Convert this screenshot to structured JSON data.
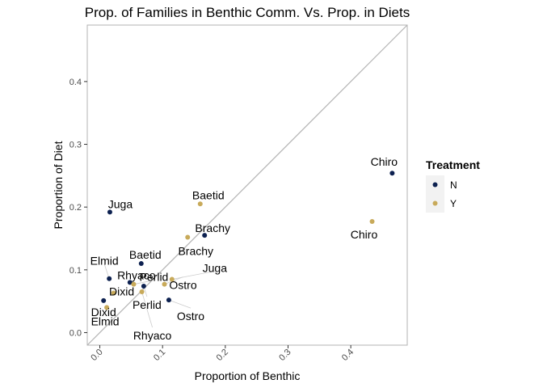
{
  "chart_data": {
    "type": "scatter",
    "title": "Prop. of Families in Benthic Comm. Vs. Prop. in Diets",
    "xlabel": "Proportion of Benthic",
    "ylabel": "Proportion of Diet",
    "xlim": [
      -0.02,
      0.49
    ],
    "ylim": [
      -0.02,
      0.49
    ],
    "x_ticks": [
      0.0,
      0.1,
      0.2,
      0.3,
      0.4
    ],
    "x_tick_labels": [
      "0.0",
      "0.1",
      "0.2",
      "0.3",
      "0.4"
    ],
    "y_ticks": [
      0.0,
      0.1,
      0.2,
      0.3,
      0.4
    ],
    "y_tick_labels": [
      "0.0",
      "0.1",
      "0.2",
      "0.3",
      "0.4"
    ],
    "reference_line": "y = x",
    "grid": false,
    "legend": {
      "title": "Treatment",
      "placement": "right",
      "entries": [
        {
          "label": "N",
          "color": "#0d2150"
        },
        {
          "label": "Y",
          "color": "#c8aa5a"
        }
      ]
    },
    "series": [
      {
        "name": "N",
        "color": "#0d2150",
        "points": [
          {
            "label": "Chiro",
            "x": 0.466,
            "y": 0.254
          },
          {
            "label": "Juga",
            "x": 0.016,
            "y": 0.192
          },
          {
            "label": "Brachy",
            "x": 0.167,
            "y": 0.155
          },
          {
            "label": "Baetid",
            "x": 0.066,
            "y": 0.11
          },
          {
            "label": "Elmid",
            "x": 0.015,
            "y": 0.086
          },
          {
            "label": "Rhyaco",
            "x": 0.048,
            "y": 0.08
          },
          {
            "label": "Perlid",
            "x": 0.07,
            "y": 0.074
          },
          {
            "label": "Ostro",
            "x": 0.11,
            "y": 0.052
          },
          {
            "label": "Dixid",
            "x": 0.006,
            "y": 0.051
          }
        ]
      },
      {
        "name": "Y",
        "color": "#c8aa5a",
        "points": [
          {
            "label": "Baetid",
            "x": 0.16,
            "y": 0.205
          },
          {
            "label": "Chiro",
            "x": 0.434,
            "y": 0.177
          },
          {
            "label": "Brachy",
            "x": 0.14,
            "y": 0.152
          },
          {
            "label": "Juga",
            "x": 0.115,
            "y": 0.085
          },
          {
            "label": "Ostro",
            "x": 0.103,
            "y": 0.077
          },
          {
            "label": "Dixid",
            "x": 0.022,
            "y": 0.063
          },
          {
            "label": "Rhyaco",
            "x": 0.067,
            "y": 0.065
          },
          {
            "label": "Elmid",
            "x": 0.011,
            "y": 0.04
          },
          {
            "label": "Perlid",
            "x": 0.054,
            "y": 0.077
          }
        ]
      }
    ]
  }
}
